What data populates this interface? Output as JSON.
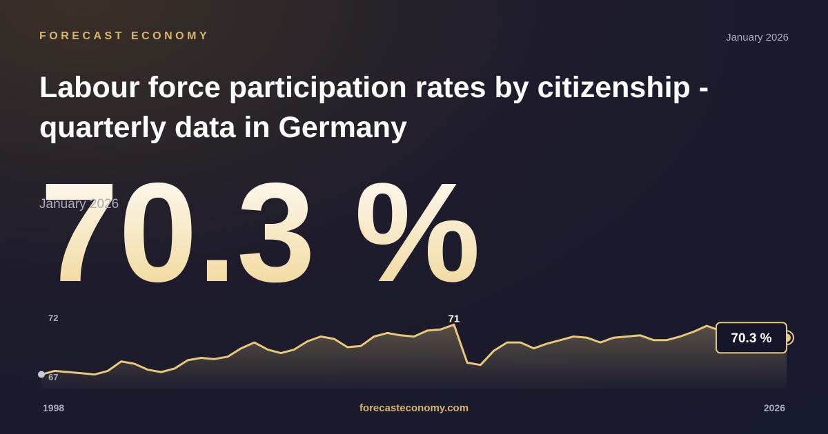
{
  "brand": "FORECAST ECONOMY",
  "date": "January 2026",
  "title": "Labour force participation rates by citizenship - quarterly data in Germany",
  "headline": "70.3 %",
  "headline_date": "January 2026",
  "footer": "forecasteconomy.com",
  "chart_data": {
    "type": "line",
    "categories": [
      "1998",
      null,
      null,
      null,
      null,
      null,
      null,
      null,
      null,
      null,
      null,
      null,
      null,
      null,
      null,
      null,
      null,
      null,
      null,
      null,
      null,
      null,
      null,
      null,
      null,
      null,
      null,
      null,
      null,
      null,
      null,
      null,
      null,
      null,
      null,
      null,
      null,
      null,
      null,
      null,
      null,
      null,
      null,
      null,
      null,
      null,
      null,
      null,
      null,
      null,
      null,
      null,
      null,
      null,
      null,
      null,
      "2026"
    ],
    "series": [
      {
        "color": "#e8c879",
        "values": [
          67.2,
          67.5,
          67.4,
          67.3,
          67.2,
          67.5,
          68.3,
          68.1,
          67.6,
          67.4,
          67.7,
          68.4,
          68.6,
          68.5,
          68.7,
          69.4,
          69.9,
          69.3,
          69.0,
          69.3,
          70.0,
          70.4,
          70.2,
          69.5,
          69.6,
          70.4,
          70.7,
          70.5,
          70.4,
          70.9,
          71.0,
          71.4,
          68.2,
          68.0,
          69.2,
          69.9,
          69.9,
          69.4,
          69.8,
          70.1,
          70.4,
          70.3,
          69.9,
          70.3,
          70.4,
          70.5,
          70.1,
          70.1,
          70.4,
          70.8,
          71.3,
          70.9,
          70.5,
          70.7,
          70.5,
          70.4,
          70.3
        ],
        "value_labels": [
          null,
          null,
          null,
          null,
          null,
          null,
          null,
          null,
          null,
          null,
          null,
          null,
          null,
          null,
          null,
          null,
          null,
          null,
          null,
          null,
          null,
          null,
          null,
          null,
          null,
          null,
          null,
          null,
          null,
          null,
          null,
          "71",
          null,
          null,
          null,
          null,
          null,
          null,
          null,
          null,
          null,
          null,
          null,
          null,
          null,
          null,
          null,
          null,
          null,
          null,
          null,
          null,
          null,
          null,
          null,
          null,
          "70.3 %"
        ]
      }
    ],
    "ylim": [
      66,
      73
    ],
    "yticks": [
      67,
      72
    ]
  }
}
